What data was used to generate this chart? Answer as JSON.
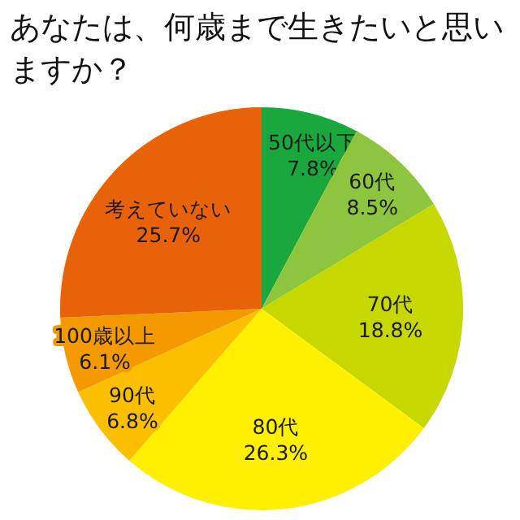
{
  "chart_data": {
    "type": "pie",
    "title": "あなたは、何歳まで生きたいと思いますか？",
    "categories": [
      "50代以下",
      "60代",
      "70代",
      "80代",
      "90代",
      "100歳以上",
      "考えていない"
    ],
    "values": [
      7.8,
      8.5,
      18.8,
      26.3,
      6.8,
      6.1,
      25.7
    ],
    "value_labels": [
      "7.8%",
      "8.5%",
      "18.8%",
      "26.3%",
      "6.8%",
      "6.1%",
      "25.7%"
    ],
    "colors": [
      "#1aa83e",
      "#8cc63f",
      "#c6d800",
      "#fff000",
      "#fbbf00",
      "#f39a00",
      "#e8620a"
    ]
  }
}
